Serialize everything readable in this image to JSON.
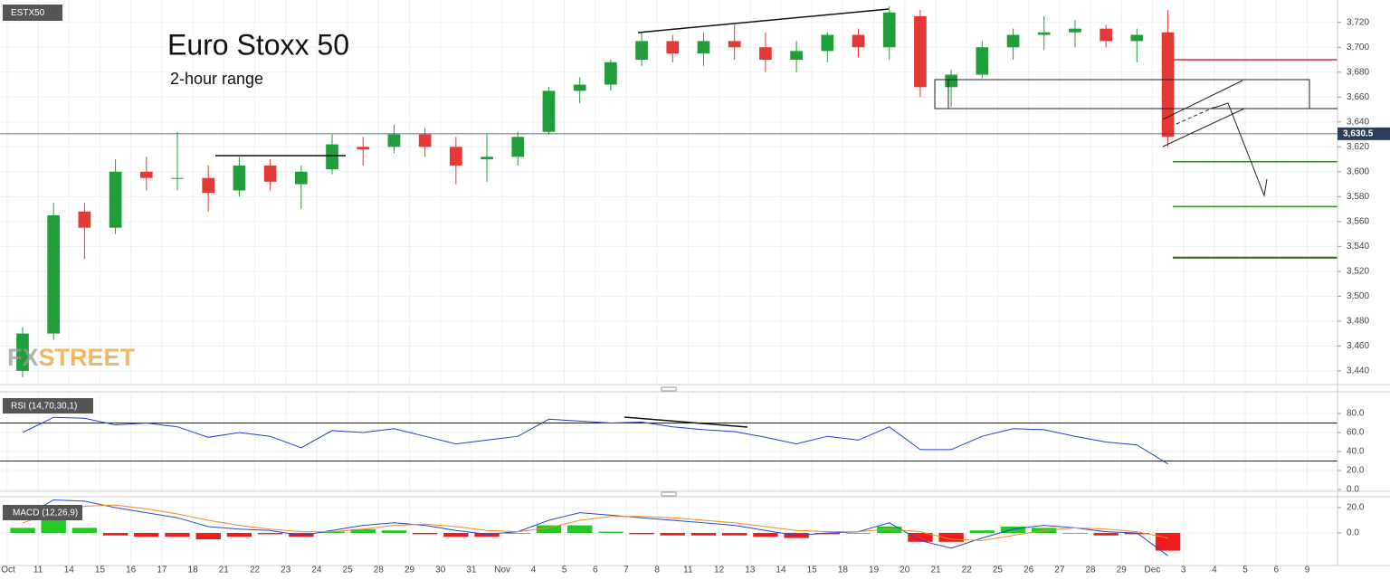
{
  "chart_data": [
    {
      "type": "candlestick",
      "symbol": "ESTX50",
      "title": "Euro Stoxx 50",
      "subtitle": "2-hour range",
      "watermark": {
        "left": "FX",
        "right": "STREET"
      },
      "x": [
        0.5,
        1.5,
        2.5,
        3.5,
        4.5,
        5.5,
        6.5,
        7.5,
        8.5,
        9.5,
        10.5,
        11.5,
        12.5,
        13.5,
        14.5,
        15.5,
        16.5,
        17.5,
        18.5,
        19.5,
        20.5,
        21.5,
        22.5,
        23.5,
        24.5,
        25.5,
        26.5,
        27.5,
        28.5,
        29.5,
        30.5,
        31.5,
        32.5,
        33.5,
        34.5,
        35.5,
        36.5,
        37.5
      ],
      "open": [
        3440,
        3470,
        3568,
        3555,
        3600,
        3595,
        3595,
        3585,
        3605,
        3590,
        3602,
        3620,
        3620,
        3630,
        3620,
        3610,
        3612,
        3632,
        3665,
        3670,
        3690,
        3705,
        3695,
        3705,
        3700,
        3690,
        3697,
        3710,
        3700,
        3725,
        3668,
        3678,
        3700,
        3710,
        3712,
        3715,
        3705,
        3712
      ],
      "high": [
        3475,
        3575,
        3575,
        3610,
        3612,
        3632,
        3605,
        3612,
        3610,
        3605,
        3630,
        3628,
        3638,
        3635,
        3628,
        3630,
        3632,
        3668,
        3676,
        3690,
        3712,
        3710,
        3712,
        3718,
        3712,
        3705,
        3712,
        3715,
        3733,
        3730,
        3682,
        3705,
        3715,
        3725,
        3722,
        3718,
        3715,
        3730
      ],
      "low": [
        3435,
        3465,
        3530,
        3550,
        3585,
        3585,
        3568,
        3580,
        3585,
        3570,
        3598,
        3605,
        3615,
        3612,
        3590,
        3592,
        3605,
        3630,
        3655,
        3665,
        3685,
        3688,
        3685,
        3690,
        3680,
        3680,
        3688,
        3692,
        3690,
        3660,
        3652,
        3675,
        3690,
        3698,
        3700,
        3700,
        3688,
        3620
      ],
      "close": [
        3470,
        3565,
        3555,
        3600,
        3595,
        3595,
        3583,
        3605,
        3592,
        3600,
        3622,
        3618,
        3630,
        3620,
        3605,
        3612,
        3628,
        3665,
        3670,
        3688,
        3705,
        3695,
        3705,
        3700,
        3690,
        3697,
        3710,
        3700,
        3728,
        3668,
        3678,
        3700,
        3710,
        3712,
        3715,
        3705,
        3710,
        3628
      ],
      "up_color": "#1f9e3a",
      "down_color": "#e53935",
      "ylim": [
        3429,
        3738
      ],
      "yticks": [
        {
          "value": 3440,
          "label": "3,440"
        },
        {
          "value": 3460,
          "label": "3,460"
        },
        {
          "value": 3480,
          "label": "3,480"
        },
        {
          "value": 3500,
          "label": "3,500"
        },
        {
          "value": 3520,
          "label": "3,520"
        },
        {
          "value": 3540,
          "label": "3,540"
        },
        {
          "value": 3560,
          "label": "3,560"
        },
        {
          "value": 3580,
          "label": "3,580"
        },
        {
          "value": 3600,
          "label": "3,600"
        },
        {
          "value": 3620,
          "label": "3,620"
        },
        {
          "value": 3640,
          "label": "3,640"
        },
        {
          "value": 3660,
          "label": "3,660"
        },
        {
          "value": 3680,
          "label": "3,680"
        },
        {
          "value": 3700,
          "label": "3,700"
        },
        {
          "value": 3720,
          "label": "3,720"
        }
      ],
      "xlim": [
        -0.23,
        42.98
      ],
      "xticks": [
        {
          "value": 0,
          "label": "Oct"
        },
        {
          "value": 1,
          "label": "11"
        },
        {
          "value": 2,
          "label": "14"
        },
        {
          "value": 3,
          "label": "15"
        },
        {
          "value": 4,
          "label": "16"
        },
        {
          "value": 5,
          "label": "17"
        },
        {
          "value": 6,
          "label": "18"
        },
        {
          "value": 7,
          "label": "21"
        },
        {
          "value": 8,
          "label": "22"
        },
        {
          "value": 9,
          "label": "23"
        },
        {
          "value": 10,
          "label": "24"
        },
        {
          "value": 11,
          "label": "25"
        },
        {
          "value": 12,
          "label": "28"
        },
        {
          "value": 13,
          "label": "29"
        },
        {
          "value": 14,
          "label": "30"
        },
        {
          "value": 15,
          "label": "31"
        },
        {
          "value": 16,
          "label": "Nov"
        },
        {
          "value": 17,
          "label": "4"
        },
        {
          "value": 18,
          "label": "5"
        },
        {
          "value": 19,
          "label": "6"
        },
        {
          "value": 20,
          "label": "7"
        },
        {
          "value": 21,
          "label": "8"
        },
        {
          "value": 22,
          "label": "11"
        },
        {
          "value": 23,
          "label": "12"
        },
        {
          "value": 24,
          "label": "13"
        },
        {
          "value": 25,
          "label": "14"
        },
        {
          "value": 26,
          "label": "15"
        },
        {
          "value": 27,
          "label": "18"
        },
        {
          "value": 28,
          "label": "19"
        },
        {
          "value": 29,
          "label": "20"
        },
        {
          "value": 30,
          "label": "21"
        },
        {
          "value": 31,
          "label": "22"
        },
        {
          "value": 32,
          "label": "25"
        },
        {
          "value": 33,
          "label": "26"
        },
        {
          "value": 34,
          "label": "27"
        },
        {
          "value": 35,
          "label": "28"
        },
        {
          "value": 36,
          "label": "29"
        },
        {
          "value": 37,
          "label": "Dec"
        },
        {
          "value": 38,
          "label": "3"
        },
        {
          "value": 39,
          "label": "4"
        },
        {
          "value": 40,
          "label": "5"
        },
        {
          "value": 41,
          "label": "6"
        },
        {
          "value": 42,
          "label": "9"
        }
      ],
      "last_price": {
        "value": 3630.5,
        "label": "3,630.5"
      },
      "last_price_color": "#2c3e5c",
      "levels": [
        {
          "value": 3690,
          "color": "#d32f2f"
        },
        {
          "value": 3608,
          "color": "#2e8b1e"
        },
        {
          "value": 3572,
          "color": "#2e8b1e"
        },
        {
          "value": 3531,
          "color": "#1e6b12"
        }
      ],
      "grid": true
    },
    {
      "type": "line",
      "title": "RSI (14,70,30,1)",
      "series": [
        {
          "color": "#1f3fd6",
          "values": [
            60,
            76,
            75,
            68,
            70,
            66,
            55,
            60,
            56,
            44,
            62,
            60,
            64,
            56,
            48,
            52,
            56,
            74,
            72,
            70,
            71,
            66,
            63,
            61,
            55,
            48,
            56,
            52,
            66,
            42,
            42,
            56,
            64,
            63,
            56,
            50,
            47,
            27
          ]
        }
      ],
      "levels": [
        70,
        30
      ],
      "ylim": [
        -1.9,
        101
      ],
      "yticks": [
        {
          "value": 0,
          "label": "0.0"
        },
        {
          "value": 20,
          "label": "20.0"
        },
        {
          "value": 40,
          "label": "40.0"
        },
        {
          "value": 60,
          "label": "60.0"
        },
        {
          "value": 80,
          "label": "80.0"
        }
      ],
      "grid": true
    },
    {
      "type": "macd",
      "title": "MACD (12,26,9)",
      "series": [
        {
          "color": "#2747d8",
          "values": [
            12,
            26,
            25,
            20,
            16,
            12,
            5,
            3,
            2,
            -2,
            2,
            6,
            8,
            6,
            2,
            -1,
            1,
            10,
            16,
            14,
            12,
            10,
            8,
            6,
            2,
            -2,
            0,
            1,
            8,
            -6,
            -12,
            -4,
            3,
            6,
            4,
            1,
            0,
            -18
          ]
        },
        {
          "color": "#f08c2a",
          "values": [
            8,
            16,
            21,
            22,
            19,
            15,
            10,
            6,
            3,
            1,
            1,
            3,
            6,
            7,
            5,
            2,
            1,
            4,
            10,
            13,
            13,
            12,
            10,
            8,
            5,
            2,
            1,
            1,
            3,
            1,
            -5,
            -6,
            -2,
            2,
            4,
            3,
            1,
            -4
          ]
        }
      ],
      "histogram": [
        4,
        10,
        4,
        -2,
        -3,
        -3,
        -5,
        -3,
        -1,
        -3,
        1,
        3,
        2,
        -1,
        -3,
        -3,
        0,
        6,
        6,
        1,
        -1,
        -2,
        -2,
        -2,
        -3,
        -4,
        -1,
        0,
        5,
        -7,
        -7,
        2,
        5,
        4,
        0,
        -2,
        -1,
        -14
      ],
      "positive_color": "#22c922",
      "negative_color": "#f01c1c",
      "ylim": [
        -25.7,
        27.1
      ],
      "yticks": [
        {
          "value": 0,
          "label": "0.0"
        },
        {
          "value": 20,
          "label": "20.0"
        }
      ],
      "grid": true
    }
  ]
}
